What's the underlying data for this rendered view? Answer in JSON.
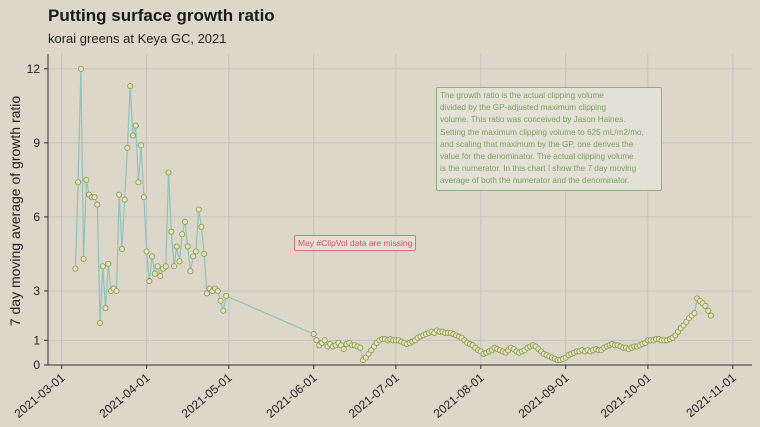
{
  "chart_data": {
    "type": "line",
    "title": "Putting surface growth ratio",
    "subtitle": "korai greens at Keya GC, 2021",
    "ylabel": "7 day moving average of growth ratio",
    "xlabel": "",
    "ylim": [
      0,
      12.6
    ],
    "xlim": [
      "2021-02-24",
      "2021-11-08"
    ],
    "y_ticks": [
      0,
      1,
      3,
      6,
      9,
      12
    ],
    "x_ticks": [
      "2021-03-01",
      "2021-04-01",
      "2021-05-01",
      "2021-06-01",
      "2021-07-01",
      "2021-08-01",
      "2021-09-01",
      "2021-10-01",
      "2021-11-01"
    ],
    "grid": true,
    "colors": {
      "line": "#8fc3bd",
      "point_stroke": "#8aa050",
      "note": "#7d9f64",
      "missing": "#c85a63"
    },
    "annotations": {
      "note": [
        "The growth ratio is the actual clipping volume",
        "divided by the GP-adjusted maximum clipping",
        "volume. This ratio was conceived by Jason Haines.",
        "Setting the maximum clipping volume to 625 mL/m2/mo,",
        "and scaling that maximum by the GP, one derives the",
        "value for the denominator. The actual clipping volume",
        "is the numerator. In this chart I show the 7 day moving",
        "average of both the numerator and the denominator."
      ],
      "missing": "May #ClipVol data are missing"
    },
    "series": [
      {
        "points": [
          [
            "2021-03-06",
            3.9
          ],
          [
            "2021-03-07",
            7.4
          ],
          [
            "2021-03-08",
            12.0
          ],
          [
            "2021-03-09",
            4.3
          ],
          [
            "2021-03-10",
            7.5
          ],
          [
            "2021-03-11",
            6.9
          ],
          [
            "2021-03-12",
            6.8
          ],
          [
            "2021-03-13",
            6.8
          ],
          [
            "2021-03-14",
            6.5
          ],
          [
            "2021-03-15",
            1.7
          ],
          [
            "2021-03-16",
            4.0
          ],
          [
            "2021-03-17",
            2.3
          ],
          [
            "2021-03-18",
            4.1
          ],
          [
            "2021-03-19",
            3.0
          ],
          [
            "2021-03-20",
            3.1
          ],
          [
            "2021-03-21",
            3.0
          ],
          [
            "2021-03-22",
            6.9
          ],
          [
            "2021-03-23",
            4.7
          ],
          [
            "2021-03-24",
            6.7
          ],
          [
            "2021-03-25",
            8.8
          ],
          [
            "2021-03-26",
            11.3
          ],
          [
            "2021-03-27",
            9.3
          ],
          [
            "2021-03-28",
            9.7
          ],
          [
            "2021-03-29",
            7.4
          ],
          [
            "2021-03-30",
            8.9
          ],
          [
            "2021-03-31",
            6.8
          ],
          [
            "2021-04-01",
            4.6
          ],
          [
            "2021-04-02",
            3.4
          ],
          [
            "2021-04-03",
            4.4
          ],
          [
            "2021-04-04",
            3.7
          ],
          [
            "2021-04-05",
            4.0
          ],
          [
            "2021-04-06",
            3.6
          ],
          [
            "2021-04-07",
            3.9
          ],
          [
            "2021-04-08",
            4.0
          ],
          [
            "2021-04-09",
            7.8
          ],
          [
            "2021-04-10",
            5.4
          ],
          [
            "2021-04-11",
            4.0
          ],
          [
            "2021-04-12",
            4.8
          ],
          [
            "2021-04-13",
            4.2
          ],
          [
            "2021-04-14",
            5.3
          ],
          [
            "2021-04-15",
            5.8
          ],
          [
            "2021-04-16",
            4.8
          ],
          [
            "2021-04-17",
            3.8
          ],
          [
            "2021-04-18",
            4.4
          ],
          [
            "2021-04-19",
            4.6
          ],
          [
            "2021-04-20",
            6.3
          ],
          [
            "2021-04-21",
            5.6
          ],
          [
            "2021-04-22",
            4.5
          ],
          [
            "2021-04-23",
            2.9
          ],
          [
            "2021-04-24",
            3.1
          ],
          [
            "2021-04-25",
            3.0
          ],
          [
            "2021-04-26",
            3.1
          ],
          [
            "2021-04-27",
            3.0
          ],
          [
            "2021-04-28",
            2.6
          ],
          [
            "2021-04-29",
            2.2
          ],
          [
            "2021-04-30",
            2.8
          ],
          [
            "2021-06-01",
            1.25
          ],
          [
            "2021-06-02",
            1.0
          ],
          [
            "2021-06-03",
            0.8
          ],
          [
            "2021-06-04",
            0.9
          ],
          [
            "2021-06-05",
            1.0
          ],
          [
            "2021-06-06",
            0.75
          ],
          [
            "2021-06-07",
            0.85
          ],
          [
            "2021-06-08",
            0.75
          ],
          [
            "2021-06-09",
            0.8
          ],
          [
            "2021-06-10",
            0.9
          ],
          [
            "2021-06-11",
            0.8
          ],
          [
            "2021-06-12",
            0.65
          ],
          [
            "2021-06-13",
            0.85
          ],
          [
            "2021-06-14",
            0.9
          ],
          [
            "2021-06-15",
            0.8
          ],
          [
            "2021-06-16",
            0.8
          ],
          [
            "2021-06-17",
            0.75
          ],
          [
            "2021-06-18",
            0.7
          ],
          [
            "2021-06-19",
            0.2
          ],
          [
            "2021-06-20",
            0.3
          ],
          [
            "2021-06-21",
            0.45
          ],
          [
            "2021-06-22",
            0.6
          ],
          [
            "2021-06-23",
            0.75
          ],
          [
            "2021-06-24",
            0.9
          ],
          [
            "2021-06-25",
            1.0
          ],
          [
            "2021-06-26",
            1.05
          ],
          [
            "2021-06-27",
            1.05
          ],
          [
            "2021-06-28",
            1.0
          ],
          [
            "2021-06-29",
            1.05
          ],
          [
            "2021-06-30",
            1.0
          ],
          [
            "2021-07-01",
            1.0
          ],
          [
            "2021-07-02",
            1.0
          ],
          [
            "2021-07-03",
            0.95
          ],
          [
            "2021-07-04",
            0.9
          ],
          [
            "2021-07-05",
            0.85
          ],
          [
            "2021-07-06",
            0.9
          ],
          [
            "2021-07-07",
            0.95
          ],
          [
            "2021-07-08",
            1.0
          ],
          [
            "2021-07-09",
            1.1
          ],
          [
            "2021-07-10",
            1.15
          ],
          [
            "2021-07-11",
            1.2
          ],
          [
            "2021-07-12",
            1.25
          ],
          [
            "2021-07-13",
            1.3
          ],
          [
            "2021-07-14",
            1.35
          ],
          [
            "2021-07-15",
            1.3
          ],
          [
            "2021-07-16",
            1.4
          ],
          [
            "2021-07-17",
            1.35
          ],
          [
            "2021-07-18",
            1.35
          ],
          [
            "2021-07-19",
            1.3
          ],
          [
            "2021-07-20",
            1.3
          ],
          [
            "2021-07-21",
            1.3
          ],
          [
            "2021-07-22",
            1.25
          ],
          [
            "2021-07-23",
            1.2
          ],
          [
            "2021-07-24",
            1.15
          ],
          [
            "2021-07-25",
            1.1
          ],
          [
            "2021-07-26",
            1.0
          ],
          [
            "2021-07-27",
            0.9
          ],
          [
            "2021-07-28",
            0.85
          ],
          [
            "2021-07-29",
            0.8
          ],
          [
            "2021-07-30",
            0.7
          ],
          [
            "2021-07-31",
            0.6
          ],
          [
            "2021-08-01",
            0.55
          ],
          [
            "2021-08-02",
            0.45
          ],
          [
            "2021-08-03",
            0.5
          ],
          [
            "2021-08-04",
            0.55
          ],
          [
            "2021-08-05",
            0.6
          ],
          [
            "2021-08-06",
            0.7
          ],
          [
            "2021-08-07",
            0.65
          ],
          [
            "2021-08-08",
            0.6
          ],
          [
            "2021-08-09",
            0.55
          ],
          [
            "2021-08-10",
            0.5
          ],
          [
            "2021-08-11",
            0.6
          ],
          [
            "2021-08-12",
            0.7
          ],
          [
            "2021-08-13",
            0.65
          ],
          [
            "2021-08-14",
            0.55
          ],
          [
            "2021-08-15",
            0.5
          ],
          [
            "2021-08-16",
            0.55
          ],
          [
            "2021-08-17",
            0.6
          ],
          [
            "2021-08-18",
            0.7
          ],
          [
            "2021-08-19",
            0.75
          ],
          [
            "2021-08-20",
            0.8
          ],
          [
            "2021-08-21",
            0.75
          ],
          [
            "2021-08-22",
            0.65
          ],
          [
            "2021-08-23",
            0.55
          ],
          [
            "2021-08-24",
            0.45
          ],
          [
            "2021-08-25",
            0.4
          ],
          [
            "2021-08-26",
            0.35
          ],
          [
            "2021-08-27",
            0.3
          ],
          [
            "2021-08-28",
            0.25
          ],
          [
            "2021-08-29",
            0.2
          ],
          [
            "2021-08-30",
            0.2
          ],
          [
            "2021-08-31",
            0.25
          ],
          [
            "2021-09-01",
            0.3
          ],
          [
            "2021-09-02",
            0.4
          ],
          [
            "2021-09-03",
            0.45
          ],
          [
            "2021-09-04",
            0.5
          ],
          [
            "2021-09-05",
            0.55
          ],
          [
            "2021-09-06",
            0.55
          ],
          [
            "2021-09-07",
            0.6
          ],
          [
            "2021-09-08",
            0.55
          ],
          [
            "2021-09-09",
            0.6
          ],
          [
            "2021-09-10",
            0.55
          ],
          [
            "2021-09-11",
            0.6
          ],
          [
            "2021-09-12",
            0.65
          ],
          [
            "2021-09-13",
            0.6
          ],
          [
            "2021-09-14",
            0.6
          ],
          [
            "2021-09-15",
            0.7
          ],
          [
            "2021-09-16",
            0.75
          ],
          [
            "2021-09-17",
            0.8
          ],
          [
            "2021-09-18",
            0.85
          ],
          [
            "2021-09-19",
            0.8
          ],
          [
            "2021-09-20",
            0.8
          ],
          [
            "2021-09-21",
            0.75
          ],
          [
            "2021-09-22",
            0.7
          ],
          [
            "2021-09-23",
            0.7
          ],
          [
            "2021-09-24",
            0.65
          ],
          [
            "2021-09-25",
            0.7
          ],
          [
            "2021-09-26",
            0.75
          ],
          [
            "2021-09-27",
            0.75
          ],
          [
            "2021-09-28",
            0.8
          ],
          [
            "2021-09-29",
            0.85
          ],
          [
            "2021-09-30",
            0.9
          ],
          [
            "2021-10-01",
            1.0
          ],
          [
            "2021-10-02",
            1.0
          ],
          [
            "2021-10-03",
            1.0
          ],
          [
            "2021-10-04",
            1.05
          ],
          [
            "2021-10-05",
            1.05
          ],
          [
            "2021-10-06",
            1.0
          ],
          [
            "2021-10-07",
            1.0
          ],
          [
            "2021-10-08",
            1.0
          ],
          [
            "2021-10-09",
            1.05
          ],
          [
            "2021-10-10",
            1.1
          ],
          [
            "2021-10-11",
            1.2
          ],
          [
            "2021-10-12",
            1.35
          ],
          [
            "2021-10-13",
            1.5
          ],
          [
            "2021-10-14",
            1.6
          ],
          [
            "2021-10-15",
            1.75
          ],
          [
            "2021-10-16",
            1.9
          ],
          [
            "2021-10-17",
            2.0
          ],
          [
            "2021-10-18",
            2.1
          ],
          [
            "2021-10-19",
            2.7
          ],
          [
            "2021-10-20",
            2.6
          ],
          [
            "2021-10-21",
            2.5
          ],
          [
            "2021-10-22",
            2.4
          ],
          [
            "2021-10-23",
            2.2
          ],
          [
            "2021-10-24",
            2.0
          ]
        ]
      }
    ]
  }
}
